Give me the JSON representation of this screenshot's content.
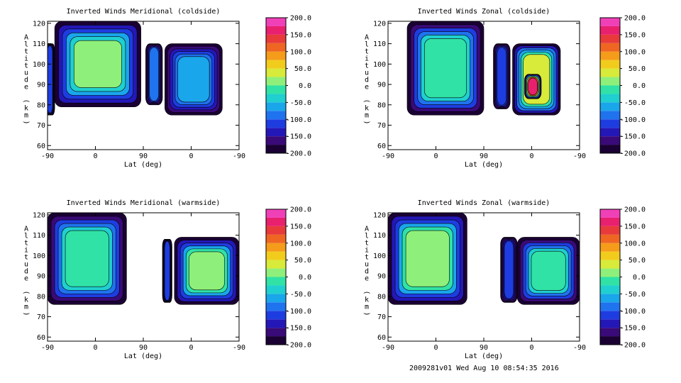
{
  "chart_data": [
    {
      "type": "heatmap",
      "title": "Inverted Winds Meridional (coldside)",
      "xlabel": "Lat (deg)",
      "ylabel": "Altitude (km)",
      "xticks": [
        "-90",
        "0",
        "90",
        "0",
        "-90"
      ],
      "yticks": [
        "60",
        "70",
        "80",
        "90",
        "100",
        "110",
        "120"
      ],
      "ylim": [
        58,
        121
      ],
      "colorbar": {
        "range": [
          -200,
          200
        ],
        "tick_labels": [
          "200.0",
          "150.0",
          "100.0",
          "50.0",
          "0.0",
          "-50.0",
          "-100.0",
          "-150.0",
          "-200.0"
        ]
      },
      "regions": [
        {
          "lat_index": [
            -1.05,
            -0.85
          ],
          "alt": [
            75,
            110
          ],
          "level": -120
        },
        {
          "lat_index": [
            -0.85,
            0.95
          ],
          "alt": [
            79,
            121
          ],
          "level": 0
        },
        {
          "lat_index": [
            1.05,
            1.4
          ],
          "alt": [
            80,
            110
          ],
          "level": -110
        },
        {
          "lat_index": [
            1.45,
            2.65
          ],
          "alt": [
            75,
            110
          ],
          "level": -80
        }
      ]
    },
    {
      "type": "heatmap",
      "title": "Inverted Winds Zonal (coldside)",
      "xlabel": "Lat (deg)",
      "ylabel": "Altitude (km)",
      "xticks": [
        "-90",
        "0",
        "90",
        "0",
        "-90"
      ],
      "yticks": [
        "60",
        "70",
        "80",
        "90",
        "100",
        "110",
        "120"
      ],
      "ylim": [
        58,
        121
      ],
      "colorbar": {
        "range": [
          -200,
          200
        ],
        "tick_labels": [
          "200.0",
          "150.0",
          "100.0",
          "50.0",
          "0.0",
          "-50.0",
          "-100.0",
          "-150.0",
          "-200.0"
        ]
      },
      "regions": [
        {
          "lat_index": [
            -0.6,
            1.0
          ],
          "alt": [
            75,
            121
          ],
          "level": -20
        },
        {
          "lat_index": [
            1.2,
            1.55
          ],
          "alt": [
            78,
            110
          ],
          "level": -120
        },
        {
          "lat_index": [
            1.6,
            2.6
          ],
          "alt": [
            75,
            110
          ],
          "level": 20
        },
        {
          "lat_index": [
            1.85,
            2.2
          ],
          "alt": [
            83,
            95
          ],
          "level": 160
        }
      ]
    },
    {
      "type": "heatmap",
      "title": "Inverted Winds Meridional (warmside)",
      "xlabel": "Lat (deg)",
      "ylabel": "Altitude (km)",
      "xticks": [
        "-90",
        "0",
        "90",
        "0",
        "-90"
      ],
      "yticks": [
        "60",
        "70",
        "80",
        "90",
        "100",
        "110",
        "120"
      ],
      "ylim": [
        58,
        121
      ],
      "colorbar": {
        "range": [
          -200,
          200
        ],
        "tick_labels": [
          "200.0",
          "150.0",
          "100.0",
          "50.0",
          "0.0",
          "-50.0",
          "-100.0",
          "-150.0",
          "-200.0"
        ]
      },
      "regions": [
        {
          "lat_index": [
            -1.0,
            0.65
          ],
          "alt": [
            76,
            121
          ],
          "level": -20
        },
        {
          "lat_index": [
            1.4,
            1.6
          ],
          "alt": [
            77,
            108
          ],
          "level": -130
        },
        {
          "lat_index": [
            1.65,
            3.0
          ],
          "alt": [
            76,
            109
          ],
          "level": 10
        }
      ]
    },
    {
      "type": "heatmap",
      "title": "Inverted Winds Zonal (warmside)",
      "xlabel": "Lat (deg)",
      "ylabel": "Altitude (km)",
      "xticks": [
        "-90",
        "0",
        "90",
        "0",
        "-90"
      ],
      "yticks": [
        "60",
        "70",
        "80",
        "90",
        "100",
        "110",
        "120"
      ],
      "ylim": [
        58,
        121
      ],
      "colorbar": {
        "range": [
          -200,
          200
        ],
        "tick_labels": [
          "200.0",
          "150.0",
          "100.0",
          "50.0",
          "0.0",
          "-50.0",
          "-100.0",
          "-150.0",
          "-200.0"
        ]
      },
      "regions": [
        {
          "lat_index": [
            -1.0,
            0.65
          ],
          "alt": [
            76,
            121
          ],
          "level": 10
        },
        {
          "lat_index": [
            1.35,
            1.7
          ],
          "alt": [
            77,
            109
          ],
          "level": -130
        },
        {
          "lat_index": [
            1.7,
            3.0
          ],
          "alt": [
            76,
            109
          ],
          "level": -20
        }
      ]
    }
  ],
  "footer": "2009281v01 Wed Aug 10 08:54:35 2016"
}
